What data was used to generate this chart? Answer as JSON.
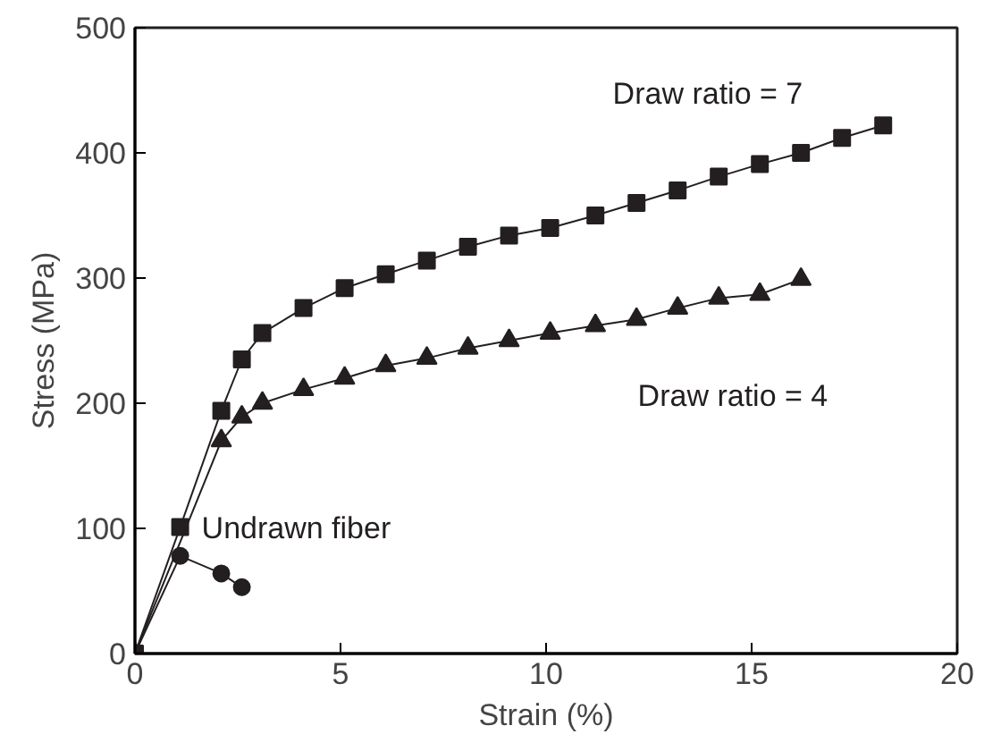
{
  "chart_data": {
    "type": "line",
    "xlabel": "Strain (%)",
    "ylabel": "Stress (MPa)",
    "xlim": [
      0,
      20
    ],
    "ylim": [
      0,
      500
    ],
    "xticks": [
      0,
      5,
      10,
      15,
      20
    ],
    "yticks": [
      0,
      100,
      200,
      300,
      400,
      500
    ],
    "grid": false,
    "line_style": "solid",
    "series": [
      {
        "name": "Draw ratio = 7",
        "color": "#231f20",
        "marker": "square",
        "x": [
          0,
          1.1,
          2.1,
          2.6,
          3.1,
          4.1,
          5.1,
          6.1,
          7.1,
          8.1,
          9.1,
          10.1,
          11.2,
          12.2,
          13.2,
          14.2,
          15.2,
          16.2,
          17.2,
          18.2
        ],
        "values": [
          0,
          101,
          194,
          235,
          256,
          276,
          292,
          303,
          314,
          325,
          334,
          340,
          350,
          360,
          370,
          381,
          391,
          400,
          412,
          422
        ]
      },
      {
        "name": "Draw ratio = 4",
        "color": "#231f20",
        "marker": "triangle",
        "x": [
          0,
          2.1,
          2.6,
          3.1,
          4.1,
          5.1,
          6.1,
          7.1,
          8.1,
          9.1,
          10.1,
          11.2,
          12.2,
          13.2,
          14.2,
          15.2,
          16.2
        ],
        "values": [
          0,
          170,
          189,
          200,
          211,
          220,
          230,
          236,
          244,
          250,
          256,
          262,
          267,
          276,
          284,
          287,
          299
        ]
      },
      {
        "name": "Undrawn fiber",
        "color": "#231f20",
        "marker": "circle",
        "x": [
          0,
          1.1,
          2.1,
          2.6
        ],
        "values": [
          0,
          78,
          64,
          53
        ]
      }
    ]
  }
}
